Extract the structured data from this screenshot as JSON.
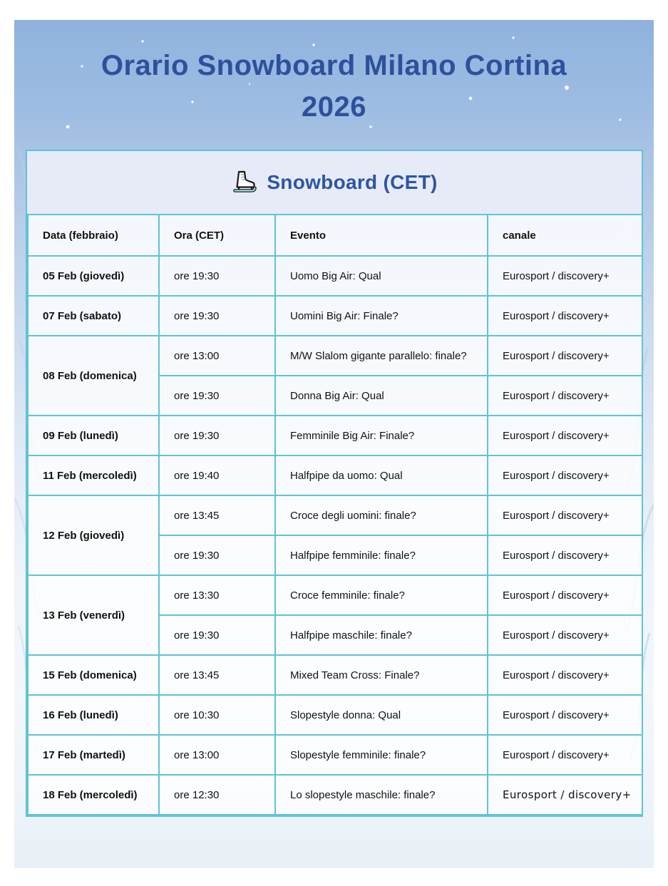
{
  "page": {
    "title": "Orario Snowboard Milano Cortina 2026"
  },
  "section": {
    "icon": "ice-skate-icon",
    "title": "Snowboard (CET)"
  },
  "colors": {
    "title_blue": "#2e509c",
    "section_blue": "#2e55a4",
    "table_border_cyan": "#5fc3d8",
    "panel_header_bg": "#e7ebf7",
    "sky_blue": "#8fb2dd"
  },
  "table": {
    "headers": [
      "Data (febbraio)",
      "Ora (CET)",
      "Evento",
      "canale"
    ],
    "rows": [
      {
        "date": "05 Feb (giovedì)",
        "slots": [
          {
            "time": "ore 19:30",
            "event": "Uomo Big Air: Qual",
            "channel": "Eurosport / discovery+"
          }
        ]
      },
      {
        "date": "07 Feb (sabato)",
        "slots": [
          {
            "time": "ore 19:30",
            "event": "Uomini Big Air: Finale?",
            "channel": "Eurosport / discovery+"
          }
        ]
      },
      {
        "date": "08 Feb (domenica)",
        "slots": [
          {
            "time": "ore 13:00",
            "event": "M/W Slalom gigante parallelo: finale?",
            "channel": "Eurosport / discovery+"
          },
          {
            "time": "ore 19:30",
            "event": "Donna Big Air: Qual",
            "channel": "Eurosport / discovery+"
          }
        ]
      },
      {
        "date": "09 Feb (lunedì)",
        "slots": [
          {
            "time": "ore 19:30",
            "event": "Femminile Big Air: Finale?",
            "channel": "Eurosport / discovery+"
          }
        ]
      },
      {
        "date": "11 Feb (mercoledì)",
        "slots": [
          {
            "time": "ore 19:40",
            "event": "Halfpipe da uomo: Qual",
            "channel": "Eurosport / discovery+"
          }
        ]
      },
      {
        "date": "12 Feb (giovedì)",
        "slots": [
          {
            "time": "ore 13:45",
            "event": "Croce degli uomini: finale?",
            "channel": "Eurosport / discovery+"
          },
          {
            "time": "ore 19:30",
            "event": "Halfpipe femminile: finale?",
            "channel": "Eurosport / discovery+"
          }
        ]
      },
      {
        "date": "13 Feb (venerdì)",
        "slots": [
          {
            "time": "ore 13:30",
            "event": "Croce femminile: finale?",
            "channel": "Eurosport / discovery+"
          },
          {
            "time": "ore 19:30",
            "event": "Halfpipe maschile: finale?",
            "channel": "Eurosport / discovery+"
          }
        ]
      },
      {
        "date": "15 Feb (domenica)",
        "slots": [
          {
            "time": "ore 13:45",
            "event": "Mixed Team Cross: Finale?",
            "channel": "Eurosport / discovery+"
          }
        ]
      },
      {
        "date": "16 Feb (lunedì)",
        "slots": [
          {
            "time": "ore 10:30",
            "event": "Slopestyle donna: Qual",
            "channel": "Eurosport / discovery+"
          }
        ]
      },
      {
        "date": "17 Feb (martedì)",
        "slots": [
          {
            "time": "ore 13:00",
            "event": "Slopestyle femminile: finale?",
            "channel": "Eurosport / discovery+"
          }
        ]
      },
      {
        "date": "18 Feb (mercoledì)",
        "slots": [
          {
            "time": "ore 12:30",
            "event": "Lo slopestyle maschile: finale?",
            "channel": "Eurosport / discovery+"
          }
        ]
      }
    ]
  }
}
